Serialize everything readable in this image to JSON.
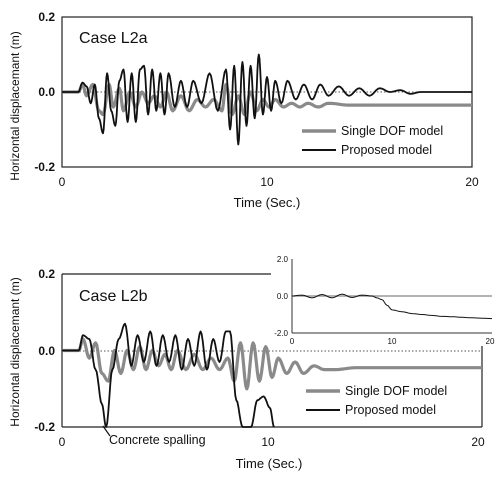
{
  "chart_data": [
    {
      "type": "line",
      "title": "Case L2a",
      "xlabel": "Time (Sec.)",
      "ylabel": "Horizontal displacemant (m)",
      "xlim": [
        0,
        20
      ],
      "ylim": [
        -0.2,
        0.2
      ],
      "x_ticks": [
        "0",
        "10",
        "20"
      ],
      "y_ticks": [
        "0.2",
        "0.0",
        "-0.2"
      ],
      "zero_line": "dotted",
      "grid": false,
      "legend_position": "bottom-right",
      "series": [
        {
          "name": "Single DOF model",
          "style": "gray-thick",
          "x": [
            0,
            0.8,
            1.0,
            1.2,
            1.5,
            1.8,
            2.0,
            2.3,
            2.5,
            2.8,
            3.0,
            3.3,
            3.6,
            3.9,
            4.2,
            4.5,
            4.8,
            5.1,
            5.4,
            5.8,
            6.2,
            6.6,
            7.0,
            7.4,
            7.8,
            8.0,
            8.3,
            8.6,
            8.9,
            9.2,
            9.5,
            9.8,
            10.1,
            10.4,
            10.8,
            11.2,
            11.6,
            12.0,
            12.5,
            13.0,
            14.0,
            15.0,
            16.0,
            17.0,
            18.0,
            19.0,
            20.0
          ],
          "y": [
            0.0,
            0.0,
            0.02,
            -0.01,
            0.02,
            -0.05,
            -0.06,
            0.02,
            -0.04,
            0.01,
            -0.05,
            0.0,
            -0.04,
            0.0,
            -0.03,
            -0.01,
            -0.04,
            0.0,
            -0.05,
            -0.01,
            -0.05,
            -0.02,
            -0.04,
            -0.02,
            -0.05,
            0.02,
            -0.06,
            -0.01,
            -0.06,
            0.0,
            -0.05,
            -0.02,
            -0.04,
            -0.02,
            -0.04,
            -0.03,
            -0.04,
            -0.03,
            -0.04,
            -0.03,
            -0.035,
            -0.035,
            -0.035,
            -0.035,
            -0.035,
            -0.035,
            -0.035
          ]
        },
        {
          "name": "Proposed model",
          "style": "black",
          "x": [
            0,
            0.8,
            1.0,
            1.2,
            1.4,
            1.6,
            1.8,
            2.0,
            2.2,
            2.4,
            2.6,
            2.8,
            3.0,
            3.2,
            3.4,
            3.6,
            3.8,
            4.0,
            4.2,
            4.4,
            4.6,
            4.8,
            5.0,
            5.2,
            5.5,
            5.8,
            6.1,
            6.4,
            6.8,
            7.2,
            7.6,
            8.0,
            8.2,
            8.4,
            8.6,
            8.8,
            9.0,
            9.2,
            9.4,
            9.6,
            9.8,
            10.0,
            10.2,
            10.4,
            10.7,
            11.0,
            11.4,
            11.8,
            12.2,
            12.6,
            13.0,
            13.5,
            14.0,
            14.5,
            15.0,
            15.5,
            16.0,
            16.5,
            17.0,
            17.5,
            18.0,
            18.5,
            19.0,
            19.5,
            20.0
          ],
          "y": [
            0.0,
            0.0,
            0.025,
            0.015,
            -0.03,
            0.02,
            -0.07,
            -0.11,
            0.05,
            -0.05,
            -0.09,
            0.03,
            0.06,
            -0.08,
            0.05,
            -0.08,
            0.06,
            0.07,
            -0.06,
            0.06,
            -0.05,
            0.05,
            -0.06,
            0.05,
            -0.04,
            0.03,
            -0.04,
            0.03,
            -0.03,
            0.05,
            -0.05,
            0.06,
            -0.1,
            0.07,
            -0.14,
            0.08,
            -0.09,
            0.07,
            -0.07,
            0.1,
            -0.06,
            0.04,
            -0.05,
            0.03,
            -0.03,
            0.03,
            -0.02,
            0.02,
            -0.02,
            0.02,
            -0.01,
            0.015,
            -0.01,
            0.01,
            -0.01,
            0.01,
            0.0,
            0.005,
            -0.005,
            0.0,
            0.0,
            0.0,
            0.0,
            0.0,
            0.0
          ]
        }
      ]
    },
    {
      "type": "line",
      "title": "Case L2b",
      "xlabel": "Time (Sec.)",
      "ylabel": "Horizontal displacemant (m)",
      "xlim": [
        0,
        20
      ],
      "ylim": [
        -0.2,
        0.2
      ],
      "x_ticks": [
        "0",
        "10",
        "20"
      ],
      "y_ticks": [
        "0.2",
        "0.0",
        "-0.2"
      ],
      "zero_line": "dotted",
      "grid": false,
      "legend_position": "bottom-right",
      "annotations": [
        {
          "text": "Concrete spalling",
          "x": 2.0,
          "y": -0.2
        }
      ],
      "series": [
        {
          "name": "Single DOF model",
          "style": "gray-thick",
          "x": [
            0,
            0.8,
            1.0,
            1.3,
            1.6,
            1.9,
            2.2,
            2.5,
            2.8,
            3.1,
            3.4,
            3.7,
            4.0,
            4.3,
            4.6,
            4.9,
            5.2,
            5.5,
            5.9,
            6.3,
            6.7,
            7.1,
            7.5,
            7.9,
            8.2,
            8.5,
            8.8,
            9.1,
            9.4,
            9.7,
            10.0,
            10.3,
            10.7,
            11.1,
            11.5,
            12.0,
            12.5,
            13.0,
            14.0,
            15.0,
            16.0,
            17.0,
            18.0,
            19.0,
            20.0
          ],
          "y": [
            0.0,
            0.0,
            0.03,
            -0.02,
            0.02,
            -0.06,
            -0.08,
            0.0,
            -0.06,
            0.0,
            -0.05,
            0.01,
            -0.05,
            0.0,
            -0.04,
            -0.01,
            -0.05,
            0.0,
            -0.05,
            -0.01,
            -0.05,
            -0.02,
            -0.05,
            -0.02,
            -0.08,
            0.02,
            -0.1,
            0.02,
            -0.08,
            0.01,
            -0.07,
            -0.02,
            -0.06,
            -0.03,
            -0.06,
            -0.04,
            -0.05,
            -0.05,
            -0.045,
            -0.045,
            -0.045,
            -0.045,
            -0.045,
            -0.045,
            -0.045
          ]
        },
        {
          "name": "Proposed model",
          "style": "black",
          "x": [
            0,
            0.8,
            1.0,
            1.3,
            1.6,
            1.9,
            2.1,
            2.4,
            2.7,
            3.0,
            3.3,
            3.6,
            3.9,
            4.2,
            4.5,
            4.8,
            5.1,
            5.4,
            5.7,
            6.0,
            6.3,
            6.6,
            6.9,
            7.2,
            7.5,
            7.8,
            8.0,
            8.3,
            8.6,
            8.8,
            9.0,
            9.3,
            9.6,
            9.9,
            10.1
          ],
          "y": [
            0.0,
            0.0,
            0.04,
            0.03,
            -0.05,
            -0.14,
            -0.2,
            -0.05,
            0.03,
            0.07,
            -0.04,
            0.04,
            -0.03,
            0.05,
            -0.04,
            0.04,
            -0.03,
            0.04,
            -0.05,
            0.03,
            -0.04,
            0.05,
            -0.05,
            0.03,
            -0.03,
            0.05,
            0.05,
            -0.13,
            -0.2,
            -0.2,
            -0.2,
            -0.13,
            -0.12,
            -0.15,
            -0.2
          ]
        }
      ],
      "inset": {
        "type": "line",
        "xlim": [
          0,
          20
        ],
        "ylim": [
          -2.0,
          2.0
        ],
        "x_ticks": [
          "0",
          "10",
          "20"
        ],
        "y_ticks": [
          "2.0",
          "0.0",
          "-2.0"
        ],
        "series": [
          {
            "name": "Single DOF model",
            "style": "gray",
            "x": [
              0,
              20
            ],
            "y": [
              0.0,
              0.0
            ]
          },
          {
            "name": "Proposed model",
            "style": "black",
            "x": [
              0,
              1.0,
              2.0,
              3.0,
              4.0,
              5.0,
              6.0,
              7.0,
              8.0,
              8.5,
              9.0,
              9.5,
              10.0,
              11.0,
              12.0,
              13.0,
              14.0,
              15.0,
              16.0,
              17.0,
              18.0,
              19.0,
              20.0
            ],
            "y": [
              0.0,
              0.05,
              -0.1,
              0.08,
              -0.1,
              0.1,
              -0.08,
              0.05,
              0.0,
              -0.1,
              -0.2,
              -0.5,
              -0.75,
              -0.85,
              -0.95,
              -1.0,
              -1.05,
              -1.1,
              -1.12,
              -1.15,
              -1.18,
              -1.2,
              -1.22
            ]
          }
        ]
      }
    }
  ]
}
